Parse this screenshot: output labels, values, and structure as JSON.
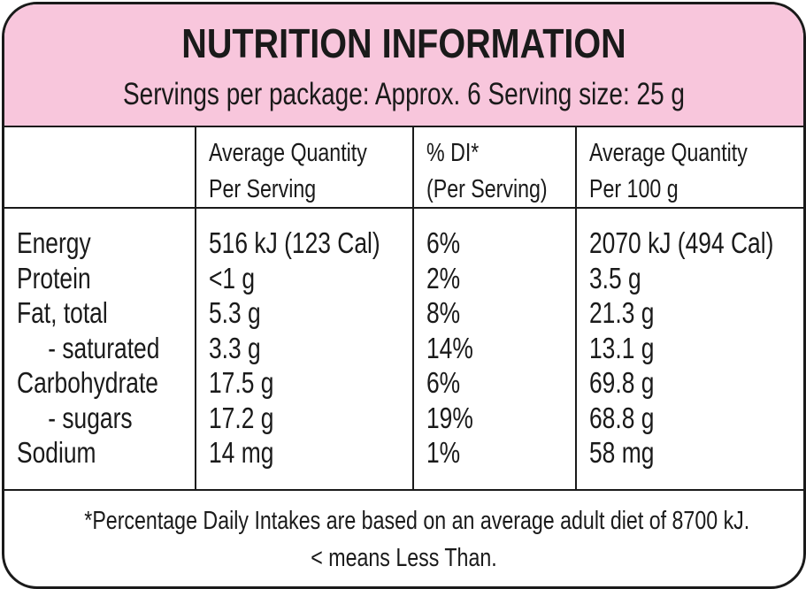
{
  "header": {
    "title": "NUTRITION INFORMATION",
    "servings_line": "Servings per package: Approx. 6  Serving size: 25 g"
  },
  "columns": [
    {
      "line1": "",
      "line2": ""
    },
    {
      "line1": "Average Quantity",
      "line2": "Per Serving"
    },
    {
      "line1": "% DI*",
      "line2": "(Per Serving)"
    },
    {
      "line1": "Average Quantity",
      "line2": "Per 100 g"
    }
  ],
  "rows": [
    {
      "name": "Energy",
      "per_serving": "516 kJ (123 Cal)",
      "di": "6%",
      "per_100g": "2070 kJ (494 Cal)"
    },
    {
      "name": "Protein",
      "per_serving": "<1 g",
      "di": "2%",
      "per_100g": "3.5 g"
    },
    {
      "name": "Fat, total",
      "per_serving": "5.3 g",
      "di": "8%",
      "per_100g": "21.3 g"
    },
    {
      "name": "- saturated",
      "per_serving": "3.3 g",
      "di": "14%",
      "per_100g": "13.1 g"
    },
    {
      "name": "Carbohydrate",
      "per_serving": "17.5 g",
      "di": "6%",
      "per_100g": "69.8 g"
    },
    {
      "name": "- sugars",
      "per_serving": "17.2 g",
      "di": "19%",
      "per_100g": "68.8 g"
    },
    {
      "name": "Sodium",
      "per_serving": "14 mg",
      "di": "1%",
      "per_100g": "58 mg"
    }
  ],
  "footer": {
    "note_line1": "*Percentage Daily Intakes are based on an average adult diet of 8700 kJ.",
    "note_line2": "< means Less Than."
  },
  "colors": {
    "header_background": "#f8c6dc",
    "ink": "#1a1a1a"
  }
}
